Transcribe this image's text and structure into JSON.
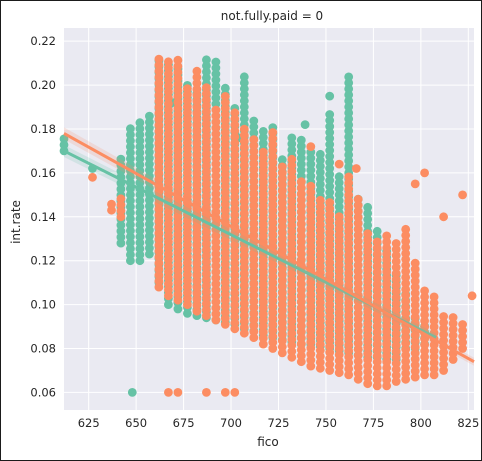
{
  "chart_data": {
    "type": "scatter",
    "title": "not.fully.paid = 0",
    "xlabel": "fico",
    "ylabel": "int.rate",
    "xlim": [
      612,
      828
    ],
    "ylim": [
      0.052,
      0.226
    ],
    "xticks": [
      625,
      650,
      675,
      700,
      725,
      750,
      775,
      800,
      825
    ],
    "yticks": [
      0.06,
      0.08,
      0.1,
      0.12,
      0.14,
      0.16,
      0.18,
      0.2,
      0.22
    ],
    "ytick_labels": [
      "0.06",
      "0.08",
      "0.10",
      "0.12",
      "0.14",
      "0.16",
      "0.18",
      "0.20",
      "0.22"
    ],
    "grid": true,
    "colors": {
      "green": "#66c2a5",
      "orange": "#fc8d62",
      "background": "#eaeaf2",
      "grid": "#ffffff"
    },
    "series": [
      {
        "color": "green",
        "columns": [
          {
            "x": 612,
            "ymin": 0.17,
            "ymax": 0.178
          },
          {
            "x": 627,
            "ymin": 0.162,
            "ymax": 0.163
          },
          {
            "x": 642,
            "ymin": 0.128,
            "ymax": 0.167
          },
          {
            "x": 647,
            "ymin": 0.12,
            "ymax": 0.181
          },
          {
            "x": 652,
            "ymin": 0.12,
            "ymax": 0.185
          },
          {
            "x": 657,
            "ymin": 0.123,
            "ymax": 0.187
          },
          {
            "x": 662,
            "ymin": 0.11,
            "ymax": 0.212
          },
          {
            "x": 667,
            "ymin": 0.1,
            "ymax": 0.212
          },
          {
            "x": 672,
            "ymin": 0.098,
            "ymax": 0.21
          },
          {
            "x": 677,
            "ymin": 0.096,
            "ymax": 0.2
          },
          {
            "x": 682,
            "ymin": 0.095,
            "ymax": 0.198
          },
          {
            "x": 687,
            "ymin": 0.094,
            "ymax": 0.212
          },
          {
            "x": 692,
            "ymin": 0.093,
            "ymax": 0.212
          },
          {
            "x": 697,
            "ymin": 0.092,
            "ymax": 0.2
          },
          {
            "x": 702,
            "ymin": 0.091,
            "ymax": 0.19
          },
          {
            "x": 707,
            "ymin": 0.089,
            "ymax": 0.205
          },
          {
            "x": 712,
            "ymin": 0.088,
            "ymax": 0.185
          },
          {
            "x": 717,
            "ymin": 0.086,
            "ymax": 0.18
          },
          {
            "x": 722,
            "ymin": 0.085,
            "ymax": 0.183
          },
          {
            "x": 727,
            "ymin": 0.084,
            "ymax": 0.168
          },
          {
            "x": 732,
            "ymin": 0.083,
            "ymax": 0.178
          },
          {
            "x": 737,
            "ymin": 0.082,
            "ymax": 0.176
          },
          {
            "x": 742,
            "ymin": 0.082,
            "ymax": 0.17
          },
          {
            "x": 747,
            "ymin": 0.081,
            "ymax": 0.17
          },
          {
            "x": 752,
            "ymin": 0.08,
            "ymax": 0.188
          },
          {
            "x": 757,
            "ymin": 0.079,
            "ymax": 0.16
          },
          {
            "x": 762,
            "ymin": 0.078,
            "ymax": 0.205
          },
          {
            "x": 767,
            "ymin": 0.077,
            "ymax": 0.15
          },
          {
            "x": 772,
            "ymin": 0.076,
            "ymax": 0.145
          },
          {
            "x": 777,
            "ymin": 0.076,
            "ymax": 0.135
          },
          {
            "x": 782,
            "ymin": 0.075,
            "ymax": 0.125
          },
          {
            "x": 787,
            "ymin": 0.075,
            "ymax": 0.115
          },
          {
            "x": 792,
            "ymin": 0.08,
            "ymax": 0.106
          },
          {
            "x": 797,
            "ymin": 0.08,
            "ymax": 0.095
          },
          {
            "x": 802,
            "ymin": 0.082,
            "ymax": 0.092
          }
        ],
        "outliers": [
          [
            648,
            0.06
          ],
          [
            752,
            0.195
          ],
          [
            669,
            0.192
          ],
          [
            704,
            0.176
          ],
          [
            739,
            0.182
          ]
        ],
        "fit": {
          "x": [
            612,
            808
          ],
          "y": [
            0.17,
            0.085
          ]
        }
      },
      {
        "color": "orange",
        "columns": [
          {
            "x": 627,
            "ymin": 0.158,
            "ymax": 0.159
          },
          {
            "x": 637,
            "ymin": 0.143,
            "ymax": 0.147
          },
          {
            "x": 642,
            "ymin": 0.14,
            "ymax": 0.15
          },
          {
            "x": 662,
            "ymin": 0.108,
            "ymax": 0.212
          },
          {
            "x": 667,
            "ymin": 0.104,
            "ymax": 0.212
          },
          {
            "x": 672,
            "ymin": 0.102,
            "ymax": 0.212
          },
          {
            "x": 677,
            "ymin": 0.1,
            "ymax": 0.2
          },
          {
            "x": 682,
            "ymin": 0.097,
            "ymax": 0.208
          },
          {
            "x": 687,
            "ymin": 0.095,
            "ymax": 0.2
          },
          {
            "x": 692,
            "ymin": 0.093,
            "ymax": 0.19
          },
          {
            "x": 697,
            "ymin": 0.091,
            "ymax": 0.195
          },
          {
            "x": 702,
            "ymin": 0.089,
            "ymax": 0.19
          },
          {
            "x": 707,
            "ymin": 0.087,
            "ymax": 0.182
          },
          {
            "x": 712,
            "ymin": 0.085,
            "ymax": 0.176
          },
          {
            "x": 717,
            "ymin": 0.082,
            "ymax": 0.172
          },
          {
            "x": 722,
            "ymin": 0.08,
            "ymax": 0.18
          },
          {
            "x": 727,
            "ymin": 0.078,
            "ymax": 0.165
          },
          {
            "x": 732,
            "ymin": 0.076,
            "ymax": 0.168
          },
          {
            "x": 737,
            "ymin": 0.074,
            "ymax": 0.158
          },
          {
            "x": 742,
            "ymin": 0.072,
            "ymax": 0.155
          },
          {
            "x": 747,
            "ymin": 0.071,
            "ymax": 0.15
          },
          {
            "x": 752,
            "ymin": 0.07,
            "ymax": 0.148
          },
          {
            "x": 757,
            "ymin": 0.069,
            "ymax": 0.142
          },
          {
            "x": 762,
            "ymin": 0.068,
            "ymax": 0.16
          },
          {
            "x": 767,
            "ymin": 0.066,
            "ymax": 0.15
          },
          {
            "x": 772,
            "ymin": 0.064,
            "ymax": 0.135
          },
          {
            "x": 777,
            "ymin": 0.063,
            "ymax": 0.13
          },
          {
            "x": 782,
            "ymin": 0.063,
            "ymax": 0.132
          },
          {
            "x": 787,
            "ymin": 0.065,
            "ymax": 0.128
          },
          {
            "x": 792,
            "ymin": 0.066,
            "ymax": 0.135
          },
          {
            "x": 797,
            "ymin": 0.067,
            "ymax": 0.12
          },
          {
            "x": 802,
            "ymin": 0.068,
            "ymax": 0.108
          },
          {
            "x": 807,
            "ymin": 0.068,
            "ymax": 0.104
          },
          {
            "x": 812,
            "ymin": 0.07,
            "ymax": 0.097
          },
          {
            "x": 817,
            "ymin": 0.075,
            "ymax": 0.095
          },
          {
            "x": 822,
            "ymin": 0.08,
            "ymax": 0.092
          },
          {
            "x": 827,
            "ymin": 0.104,
            "ymax": 0.105
          }
        ],
        "outliers": [
          [
            667,
            0.06
          ],
          [
            672,
            0.06
          ],
          [
            687,
            0.06
          ],
          [
            697,
            0.06
          ],
          [
            702,
            0.06
          ],
          [
            812,
            0.14
          ],
          [
            802,
            0.16
          ],
          [
            797,
            0.155
          ],
          [
            822,
            0.15
          ],
          [
            766,
            0.162
          ],
          [
            757,
            0.164
          ],
          [
            742,
            0.172
          ]
        ],
        "fit": {
          "x": [
            612,
            828
          ],
          "y": [
            0.178,
            0.074
          ]
        }
      }
    ]
  }
}
